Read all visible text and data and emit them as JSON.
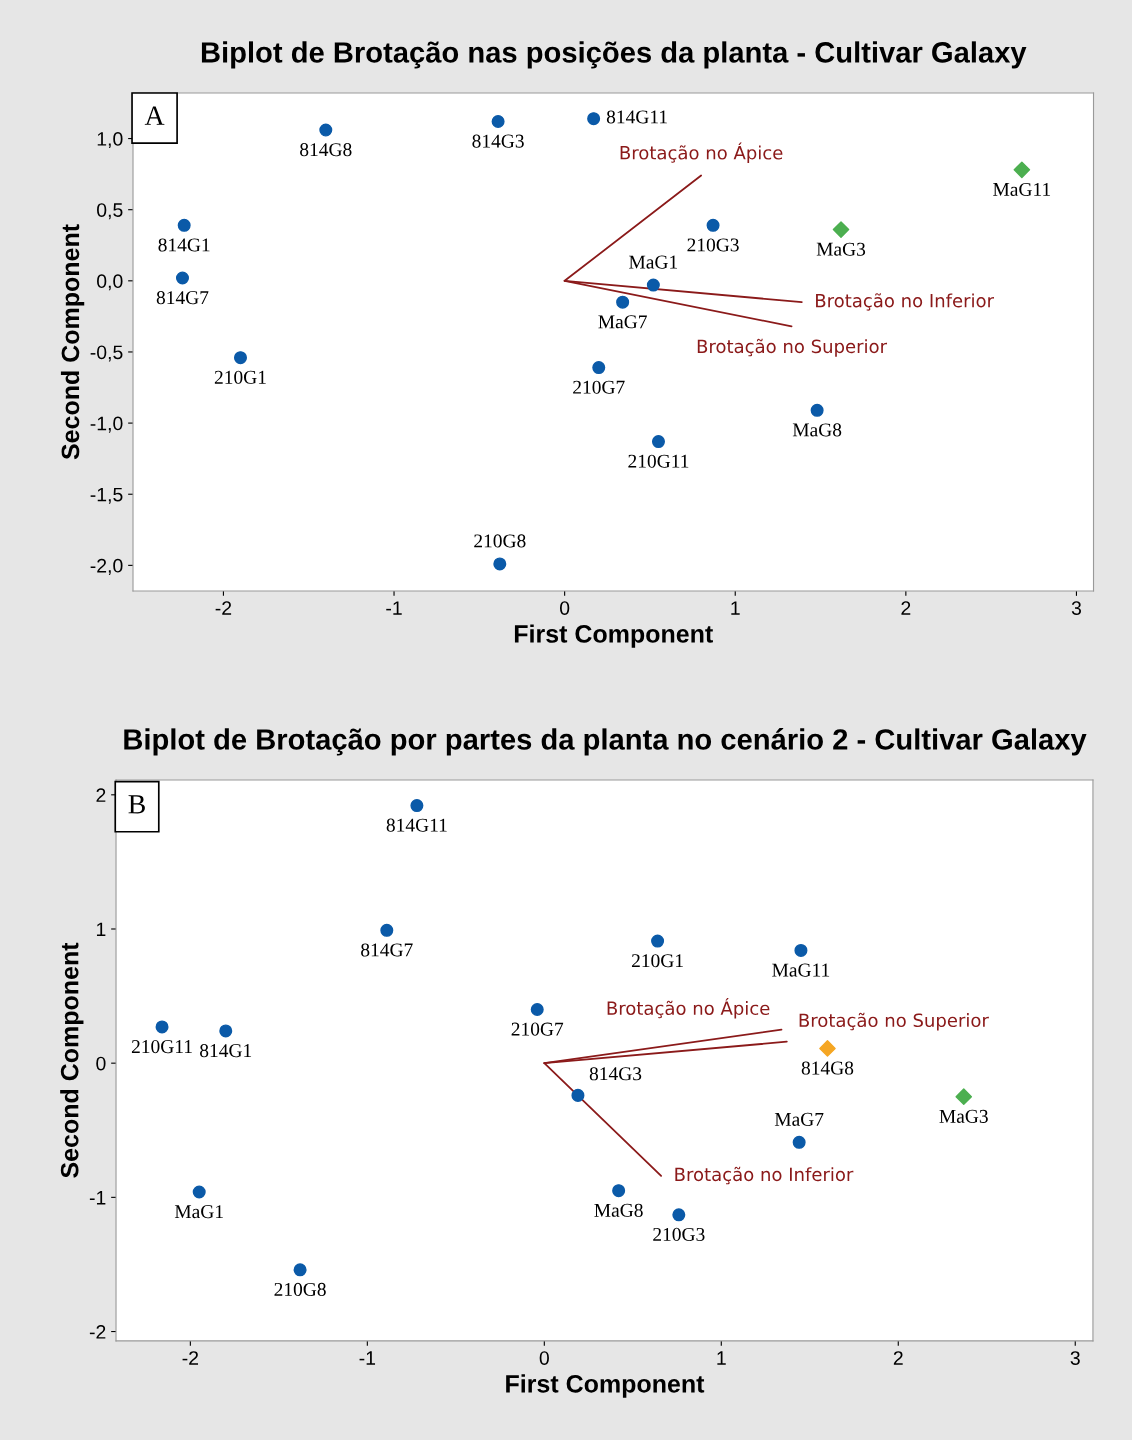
{
  "chart_data": [
    {
      "type": "scatter",
      "title": "Biplot de Brotação nas posições da planta - Cultivar Galaxy",
      "xlabel": "First Component",
      "ylabel": "Second Component",
      "annotations": [
        "A"
      ],
      "xlim": [
        -2.53,
        3.1
      ],
      "ylim": [
        -2.18,
        1.32
      ],
      "xticks": [
        -2,
        -1,
        0,
        1,
        2,
        3
      ],
      "yticks": [
        {
          "value": -2.0,
          "label": "-2,0"
        },
        {
          "value": -1.5,
          "label": "-1,5"
        },
        {
          "value": -1.0,
          "label": "-1,0"
        },
        {
          "value": -0.5,
          "label": "-0,5"
        },
        {
          "value": 0.0,
          "label": "0,0"
        },
        {
          "value": 0.5,
          "label": "0,5"
        },
        {
          "value": 1.0,
          "label": "1,0"
        }
      ],
      "grid": false,
      "legend": false,
      "series": [
        {
          "marker": "circle",
          "color": "#0b5aa8",
          "x": [
            -1.4,
            -0.39,
            0.17,
            -2.23,
            0.87,
            -2.24,
            0.52,
            0.34,
            -1.9,
            0.2,
            1.48,
            0.55,
            -0.38
          ],
          "values": [
            1.06,
            1.12,
            1.14,
            0.39,
            0.39,
            0.02,
            -0.03,
            -0.15,
            -0.54,
            -0.61,
            -0.91,
            -1.13,
            -1.99
          ],
          "value_labels": [
            "814G8",
            "814G3",
            "814G11",
            "814G1",
            "210G3",
            "814G7",
            "MaG1",
            "MaG7",
            "210G1",
            "210G7",
            "MaG8",
            "210G11",
            "210G8"
          ]
        },
        {
          "marker": "diamond",
          "color": "#4caf50",
          "x": [
            2.68,
            1.62
          ],
          "values": [
            0.78,
            0.36
          ],
          "value_labels": [
            "MaG11",
            "MaG3"
          ]
        },
        {
          "type": "line",
          "marker": "none",
          "name": "Brotação no Ápice",
          "color": "#8b1a1a",
          "x": [
            0,
            0.8
          ],
          "values": [
            0,
            0.74
          ]
        },
        {
          "type": "line",
          "marker": "none",
          "name": "Brotação no Inferior",
          "color": "#8b1a1a",
          "x": [
            0,
            1.39
          ],
          "values": [
            0,
            -0.15
          ]
        },
        {
          "type": "line",
          "marker": "none",
          "name": "Brotação no Superior",
          "color": "#8b1a1a",
          "x": [
            0,
            1.33
          ],
          "values": [
            0,
            -0.32
          ]
        }
      ]
    },
    {
      "type": "scatter",
      "title": "Biplot de Brotação por partes da planta no cenário 2 - Cultivar Galaxy",
      "xlabel": "First Component",
      "ylabel": "Second Component",
      "annotations": [
        "B"
      ],
      "xlim": [
        -2.42,
        3.1
      ],
      "ylim": [
        -2.07,
        2.11
      ],
      "xticks": [
        -2,
        -1,
        0,
        1,
        2,
        3
      ],
      "yticks": [
        -2,
        -1,
        0,
        1,
        2
      ],
      "grid": false,
      "legend": false,
      "series": [
        {
          "marker": "circle",
          "color": "#0b5aa8",
          "x": [
            -0.72,
            -0.89,
            0.64,
            1.45,
            -0.04,
            -2.16,
            -1.8,
            0.19,
            1.44,
            -1.95,
            0.42,
            0.76,
            -1.38
          ],
          "values": [
            1.92,
            0.99,
            0.91,
            0.84,
            0.4,
            0.27,
            0.24,
            -0.24,
            -0.59,
            -0.96,
            -0.95,
            -1.13,
            -1.54
          ],
          "value_labels": [
            "814G11",
            "814G7",
            "210G1",
            "MaG11",
            "210G7",
            "210G11",
            "814G1",
            "814G3",
            "MaG7",
            "MaG1",
            "MaG8",
            "210G3",
            "210G8"
          ]
        },
        {
          "marker": "diamond",
          "color": "#4caf50",
          "x": [
            2.37
          ],
          "values": [
            -0.25
          ],
          "value_labels": [
            "MaG3"
          ]
        },
        {
          "marker": "diamond",
          "color": "#f5a623",
          "x": [
            1.6
          ],
          "values": [
            0.11
          ],
          "value_labels": [
            "814G8"
          ]
        },
        {
          "type": "line",
          "marker": "none",
          "name": "Brotação no Ápice",
          "color": "#8b1a1a",
          "x": [
            0,
            1.34
          ],
          "values": [
            0,
            0.25
          ]
        },
        {
          "type": "line",
          "marker": "none",
          "name": "Brotação no Superior",
          "color": "#8b1a1a",
          "x": [
            0,
            1.37
          ],
          "values": [
            0,
            0.16
          ]
        },
        {
          "type": "line",
          "marker": "none",
          "name": "Brotação no Inferior",
          "color": "#8b1a1a",
          "x": [
            0,
            0.66
          ],
          "values": [
            0,
            -0.84
          ]
        }
      ]
    }
  ]
}
